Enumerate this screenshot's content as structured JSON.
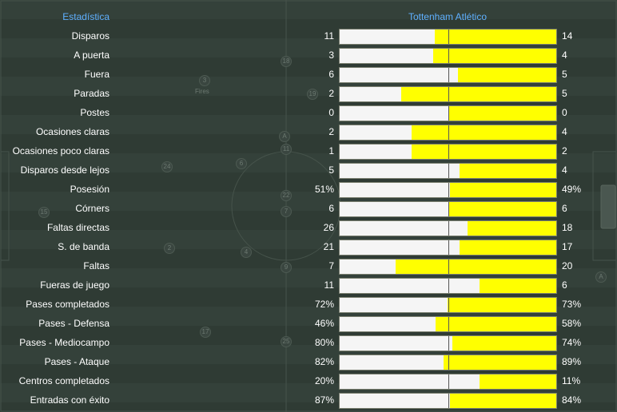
{
  "header": {
    "stat_label": "Estadística",
    "teams_label": "Tottenham Atlético"
  },
  "colors": {
    "home_bar": "#f5f5f5",
    "away_bar": "#ffff00",
    "header_text": "#5fb0ff"
  },
  "rows": [
    {
      "label": "Disparos",
      "left": "11",
      "right": "14",
      "home_fraction": 0.44
    },
    {
      "label": "A puerta",
      "left": "3",
      "right": "4",
      "home_fraction": 0.43
    },
    {
      "label": "Fuera",
      "left": "6",
      "right": "5",
      "home_fraction": 0.545
    },
    {
      "label": "Paradas",
      "left": "2",
      "right": "5",
      "home_fraction": 0.285
    },
    {
      "label": "Postes",
      "left": "0",
      "right": "0",
      "home_fraction": 0.5
    },
    {
      "label": "Ocasiones claras",
      "left": "2",
      "right": "4",
      "home_fraction": 0.333
    },
    {
      "label": "Ocasiones poco claras",
      "left": "1",
      "right": "2",
      "home_fraction": 0.333
    },
    {
      "label": "Disparos desde lejos",
      "left": "5",
      "right": "4",
      "home_fraction": 0.555
    },
    {
      "label": "Posesión",
      "left": "51%",
      "right": "49%",
      "home_fraction": 0.51
    },
    {
      "label": "Córners",
      "left": "6",
      "right": "6",
      "home_fraction": 0.5
    },
    {
      "label": "Faltas directas",
      "left": "26",
      "right": "18",
      "home_fraction": 0.59
    },
    {
      "label": "S. de banda",
      "left": "21",
      "right": "17",
      "home_fraction": 0.553
    },
    {
      "label": "Faltas",
      "left": "7",
      "right": "20",
      "home_fraction": 0.26
    },
    {
      "label": "Fueras de juego",
      "left": "11",
      "right": "6",
      "home_fraction": 0.647
    },
    {
      "label": "Pases completados",
      "left": "72%",
      "right": "73%",
      "home_fraction": 0.497
    },
    {
      "label": "Pases - Defensa",
      "left": "46%",
      "right": "58%",
      "home_fraction": 0.442
    },
    {
      "label": "Pases - Mediocampo",
      "left": "80%",
      "right": "74%",
      "home_fraction": 0.519
    },
    {
      "label": "Pases - Ataque",
      "left": "82%",
      "right": "89%",
      "home_fraction": 0.48
    },
    {
      "label": "Centros completados",
      "left": "20%",
      "right": "11%",
      "home_fraction": 0.645
    },
    {
      "label": "Entradas con éxito",
      "left": "87%",
      "right": "84%",
      "home_fraction": 0.509
    }
  ],
  "pitch_markers": [
    {
      "text": "18"
    },
    {
      "text": "3"
    },
    {
      "text": "19"
    },
    {
      "text": "A"
    },
    {
      "text": "11"
    },
    {
      "text": "24"
    },
    {
      "text": "6"
    },
    {
      "text": "22"
    },
    {
      "text": "7"
    },
    {
      "text": "15"
    },
    {
      "text": "2"
    },
    {
      "text": "4"
    },
    {
      "text": "9"
    },
    {
      "text": "17"
    },
    {
      "text": "25"
    },
    {
      "text": "A"
    }
  ],
  "pitch_marker_label": "Fires"
}
